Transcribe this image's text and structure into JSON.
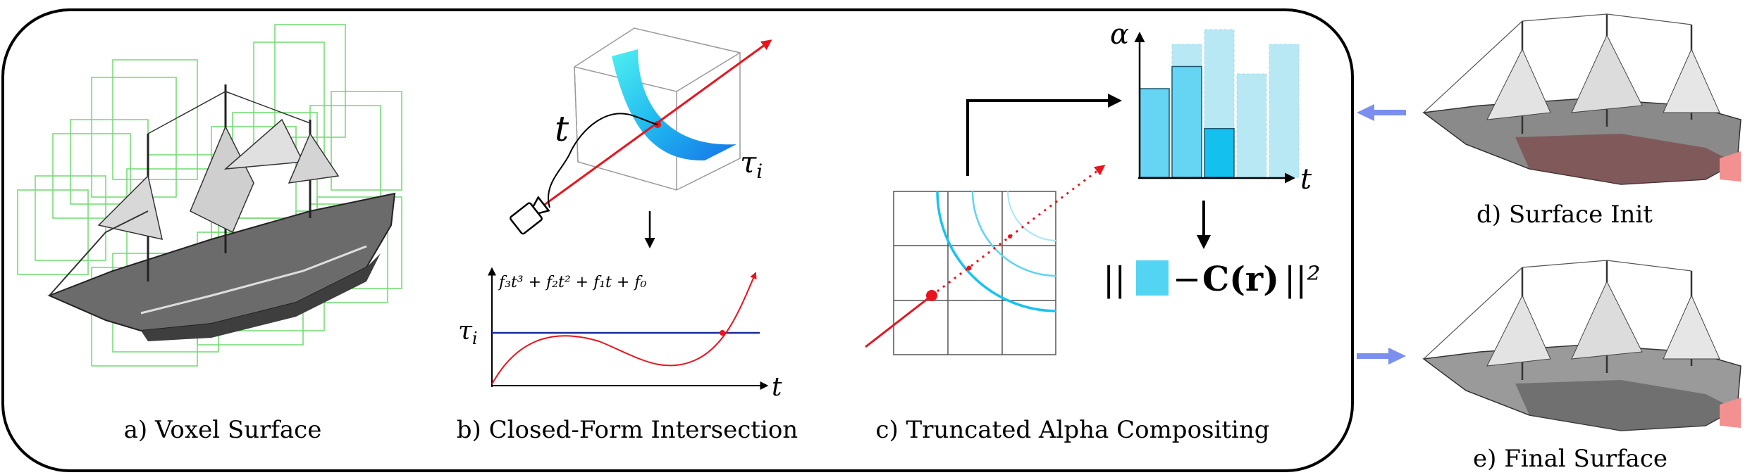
{
  "panels": {
    "a": {
      "caption": "a) Voxel Surface"
    },
    "b": {
      "caption": "b) Closed-Form Intersection",
      "t_label": "t",
      "tau_label": "τ",
      "tau_sub": "i",
      "poly_label": "f₃t³ + f₂t² + f₁t + f₀",
      "graph_tau_label": "τ",
      "graph_tau_sub": "i",
      "graph_t_label": "t"
    },
    "c": {
      "caption": "c) Truncated Alpha Compositing",
      "alpha_label": "α",
      "t_label": "t",
      "loss_prefix": "||",
      "loss_mid": "− ",
      "loss_C": "C(r)",
      "loss_suffix": "||²"
    },
    "d": {
      "caption": "d) Surface Init"
    },
    "e": {
      "caption": "e) Final Surface"
    }
  },
  "chart_data": {
    "type": "bar",
    "xlabel": "t",
    "ylabel": "α",
    "bars": [
      {
        "composited": 0.6,
        "total": 0.6
      },
      {
        "composited": 0.75,
        "total": 0.9
      },
      {
        "composited": 0.33,
        "total": 1.0
      },
      {
        "composited": 0,
        "total": 0.7
      },
      {
        "composited": 0,
        "total": 0.9
      }
    ]
  },
  "colors": {
    "ray": "#e8141e",
    "voxel_grid": "#5fd65f",
    "surface_cyan": "#19c3f0",
    "bar_dark": "#2ec6ee",
    "bar_light": "#b9e8f5",
    "tau_line": "#1a2aa0",
    "arrow_blue": "#7b8fef",
    "swatch": "#52d4f2"
  }
}
